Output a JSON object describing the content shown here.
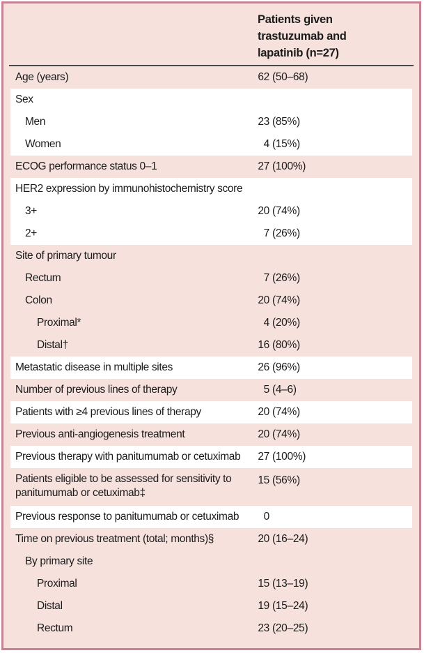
{
  "table": {
    "column_header": "Patients given trastuzumab and lapatinib (n=27)",
    "colors": {
      "row_pink": "#f6e1dd",
      "row_white": "#ffffff",
      "frame_border": "#c58294",
      "header_rule": "#4a4a4a",
      "text": "#1b1b1b"
    },
    "rows": [
      {
        "label": "Age (years)",
        "num": "62",
        "rest": "(50–68)",
        "indent": 0,
        "band": "pink"
      },
      {
        "label": "Sex",
        "num": "",
        "rest": "",
        "indent": 0,
        "band": "white"
      },
      {
        "label": "Men",
        "num": "23",
        "rest": "(85%)",
        "indent": 1,
        "band": "white"
      },
      {
        "label": "Women",
        "num": "4",
        "rest": "(15%)",
        "indent": 1,
        "band": "white"
      },
      {
        "label": "ECOG performance status 0–1",
        "num": "27",
        "rest": "(100%)",
        "indent": 0,
        "band": "pink"
      },
      {
        "label": "HER2 expression by immunohistochemistry score",
        "num": "",
        "rest": "",
        "indent": 0,
        "band": "white"
      },
      {
        "label": "3+",
        "num": "20",
        "rest": "(74%)",
        "indent": 1,
        "band": "white"
      },
      {
        "label": "2+",
        "num": "7",
        "rest": "(26%)",
        "indent": 1,
        "band": "white"
      },
      {
        "label": "Site of primary tumour",
        "num": "",
        "rest": "",
        "indent": 0,
        "band": "pink"
      },
      {
        "label": "Rectum",
        "num": "7",
        "rest": "(26%)",
        "indent": 1,
        "band": "pink"
      },
      {
        "label": "Colon",
        "num": "20",
        "rest": "(74%)",
        "indent": 1,
        "band": "pink"
      },
      {
        "label": "Proximal*",
        "num": "4",
        "rest": "(20%)",
        "indent": 2,
        "band": "pink"
      },
      {
        "label": "Distal†",
        "num": "16",
        "rest": "(80%)",
        "indent": 2,
        "band": "pink"
      },
      {
        "label": "Metastatic disease in multiple sites",
        "num": "26",
        "rest": "(96%)",
        "indent": 0,
        "band": "white"
      },
      {
        "label": "Number of previous lines of therapy",
        "num": "5",
        "rest": "(4–6)",
        "indent": 0,
        "band": "pink"
      },
      {
        "label": "Patients with ≥4 previous lines of therapy",
        "num": "20",
        "rest": "(74%)",
        "indent": 0,
        "band": "white"
      },
      {
        "label": "Previous anti-angiogenesis treatment",
        "num": "20",
        "rest": "(74%)",
        "indent": 0,
        "band": "pink"
      },
      {
        "label": "Previous therapy with panitumumab or cetuximab",
        "num": "27",
        "rest": "(100%)",
        "indent": 0,
        "band": "white"
      },
      {
        "label": "Patients eligible to be assessed for sensitivity to panitumumab or cetuximab‡",
        "num": "15",
        "rest": "(56%)",
        "indent": 0,
        "band": "pink",
        "wrap": true
      },
      {
        "label": "Previous response to panitumumab or cetuximab",
        "num": "0",
        "rest": "",
        "indent": 0,
        "band": "white"
      },
      {
        "label": "Time on previous treatment (total; months)§",
        "num": "20",
        "rest": "(16–24)",
        "indent": 0,
        "band": "pink"
      },
      {
        "label": "By primary site",
        "num": "",
        "rest": "",
        "indent": 1,
        "band": "pink"
      },
      {
        "label": "Proximal",
        "num": "15",
        "rest": "(13–19)",
        "indent": 2,
        "band": "pink"
      },
      {
        "label": "Distal",
        "num": "19",
        "rest": "(15–24)",
        "indent": 2,
        "band": "pink"
      },
      {
        "label": "Rectum",
        "num": "23",
        "rest": "(20–25)",
        "indent": 2,
        "band": "pink"
      }
    ]
  }
}
